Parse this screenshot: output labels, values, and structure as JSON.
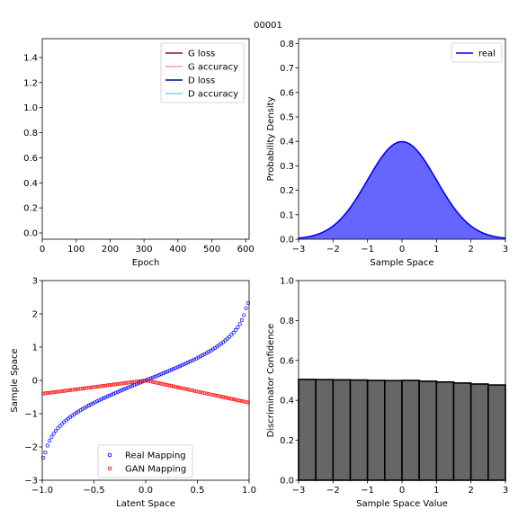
{
  "figure_title": "00001",
  "chart_data": [
    {
      "type": "line",
      "xlabel": "Epoch",
      "ylabel": "",
      "xlim": [
        0,
        610
      ],
      "ylim": [
        -0.05,
        1.55
      ],
      "xticks": [
        0,
        100,
        200,
        300,
        400,
        500,
        600
      ],
      "yticks": [
        0.0,
        0.2,
        0.4,
        0.6,
        0.8,
        1.0,
        1.2,
        1.4
      ],
      "legend_position": "top-right",
      "series": [
        {
          "name": "G loss",
          "color": "#8b1a1a",
          "values": []
        },
        {
          "name": "G accuracy",
          "color": "#f4a3a3",
          "values": []
        },
        {
          "name": "D loss",
          "color": "#00008b",
          "values": []
        },
        {
          "name": "D accuracy",
          "color": "#87ceeb",
          "values": []
        }
      ]
    },
    {
      "type": "area",
      "xlabel": "Sample Space",
      "ylabel": "Probability Density",
      "xlim": [
        -3,
        3
      ],
      "ylim": [
        0,
        0.82
      ],
      "xticks": [
        -3,
        -2,
        -1,
        0,
        1,
        2,
        3
      ],
      "yticks": [
        0.0,
        0.1,
        0.2,
        0.3,
        0.4,
        0.5,
        0.6,
        0.7,
        0.8
      ],
      "legend_position": "top-right",
      "series": [
        {
          "name": "real",
          "color": "#0000ff",
          "fill": "#6666ff",
          "distribution": "standard normal",
          "mean": 0,
          "std": 1,
          "peak": 0.399
        }
      ]
    },
    {
      "type": "scatter",
      "xlabel": "Latent Space",
      "ylabel": "Sample Space",
      "xlim": [
        -1.0,
        1.0
      ],
      "ylim": [
        -3,
        3
      ],
      "xticks": [
        -1.0,
        -0.5,
        0.0,
        0.5,
        1.0
      ],
      "yticks": [
        -3,
        -2,
        -1,
        0,
        1,
        2,
        3
      ],
      "legend_position": "bottom-center",
      "series": [
        {
          "name": "Real Mapping",
          "color": "#0000ff",
          "marker": "hollow-circle",
          "x_range": [
            -0.99,
            0.99
          ],
          "endpoints_y": [
            -2.33,
            2.33
          ]
        },
        {
          "name": "GAN Mapping",
          "color": "#ff0000",
          "marker": "hollow-circle",
          "x_range": [
            -0.99,
            0.99
          ],
          "points_xy": [
            [
              -1.0,
              -0.4
            ],
            [
              0.0,
              0.0
            ],
            [
              1.0,
              -0.67
            ]
          ]
        }
      ]
    },
    {
      "type": "bar",
      "xlabel": "Sample Space Value",
      "ylabel": "Discriminator Confidence",
      "xlim": [
        -3,
        3
      ],
      "ylim": [
        0,
        1.0
      ],
      "xticks": [
        -3,
        -2,
        -1,
        0,
        1,
        2,
        3
      ],
      "yticks": [
        0.0,
        0.2,
        0.4,
        0.6,
        0.8,
        1.0
      ],
      "bar_color": "#666666",
      "edge_color": "#000000",
      "bin_width": 0.5,
      "x": [
        -2.75,
        -2.25,
        -1.75,
        -1.25,
        -0.75,
        -0.25,
        0.25,
        0.75,
        1.25,
        1.75,
        2.25,
        2.75
      ],
      "values": [
        0.505,
        0.504,
        0.503,
        0.502,
        0.5,
        0.499,
        0.5,
        0.496,
        0.492,
        0.487,
        0.482,
        0.477
      ]
    }
  ]
}
